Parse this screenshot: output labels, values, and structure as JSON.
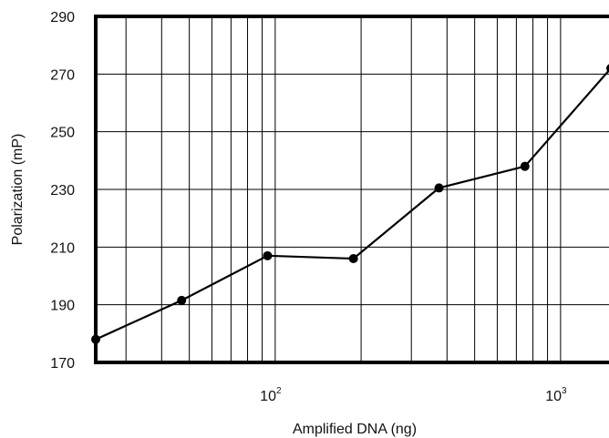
{
  "chart_data": {
    "type": "line",
    "xscale": "log",
    "xlabel": "Amplified DNA (ng)",
    "ylabel": "Polarization (mP)",
    "xlim": [
      23.5,
      1500
    ],
    "ylim": [
      170,
      290
    ],
    "grid": true,
    "x_ticks": [
      {
        "value": 100,
        "base": "10",
        "exp": "2"
      },
      {
        "value": 1000,
        "base": "10",
        "exp": "3"
      }
    ],
    "y_ticks": [
      170,
      190,
      210,
      230,
      250,
      270,
      290
    ],
    "series": [
      {
        "x": [
          23.5,
          47,
          94,
          188,
          375,
          750,
          1500
        ],
        "y": [
          178,
          191.5,
          207,
          206,
          230.5,
          238,
          272
        ]
      }
    ]
  }
}
